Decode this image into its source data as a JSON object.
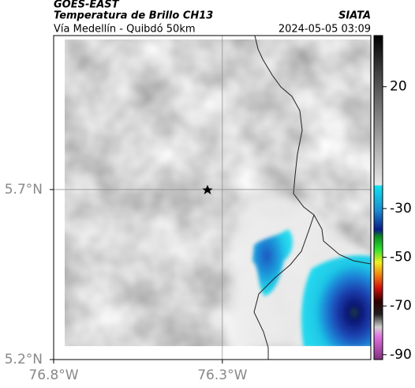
{
  "header": {
    "title": "GOES-EAST",
    "subtitle": "Temperatura de Brillo CH13",
    "source": "SIATA",
    "location": "Vía Medellín - Quibdó 50km",
    "datetime": "2024-05-05 03:09"
  },
  "map": {
    "xlim": [
      -76.8,
      -75.86
    ],
    "ylim": [
      5.2,
      6.153
    ],
    "xticks": [
      {
        "value": -76.8,
        "label": "76.8°W"
      },
      {
        "value": -76.3,
        "label": "76.3°W"
      }
    ],
    "yticks": [
      {
        "value": 5.2,
        "label": "5.2°N"
      },
      {
        "value": 5.7,
        "label": "5.7°N"
      }
    ]
  },
  "colorbar": {
    "clim": [
      -92,
      41
    ],
    "ticks": [
      20,
      -30,
      -50,
      -70,
      -90
    ]
  }
}
